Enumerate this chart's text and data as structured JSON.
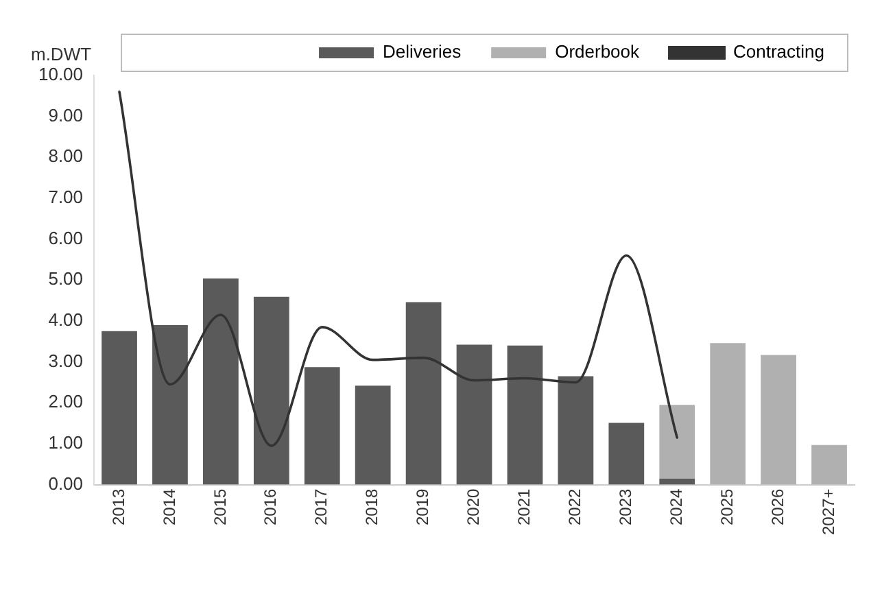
{
  "chart_data": {
    "type": "bar",
    "stacked": true,
    "ylabel": "m.DWT",
    "categories": [
      "2013",
      "2014",
      "2015",
      "2016",
      "2017",
      "2018",
      "2019",
      "2020",
      "2021",
      "2022",
      "2023",
      "2024",
      "2025",
      "2026",
      "2027+"
    ],
    "series": [
      {
        "name": "Deliveries",
        "color": "#5a5a5a",
        "values": [
          3.75,
          3.9,
          5.04,
          4.59,
          2.87,
          2.42,
          4.46,
          3.42,
          3.4,
          2.65,
          1.51,
          0.15,
          null,
          null,
          null
        ]
      },
      {
        "name": "Orderbook",
        "color": "#b0b0b0",
        "values": [
          null,
          null,
          null,
          null,
          null,
          null,
          null,
          null,
          null,
          null,
          null,
          1.8,
          3.46,
          3.17,
          0.97
        ]
      },
      {
        "name": "Contracting",
        "type": "line",
        "color": "#333333",
        "values": [
          9.6,
          2.45,
          4.15,
          0.95,
          3.85,
          3.05,
          3.1,
          2.55,
          2.6,
          2.5,
          5.6,
          1.15,
          null,
          null,
          null
        ]
      }
    ],
    "ylim": [
      0,
      10
    ],
    "yticks": [
      {
        "value": 0,
        "label": "0.00"
      },
      {
        "value": 1,
        "label": "1.00"
      },
      {
        "value": 2,
        "label": "2.00"
      },
      {
        "value": 3,
        "label": "3.00"
      },
      {
        "value": 4,
        "label": "4.00"
      },
      {
        "value": 5,
        "label": "5.00"
      },
      {
        "value": 6,
        "label": "6.00"
      },
      {
        "value": 7,
        "label": "7.00"
      },
      {
        "value": 8,
        "label": "8.00"
      },
      {
        "value": 9,
        "label": "9.00"
      },
      {
        "value": 10,
        "label": "10.00"
      }
    ],
    "grid": false,
    "legend": "top",
    "marker": "none"
  }
}
